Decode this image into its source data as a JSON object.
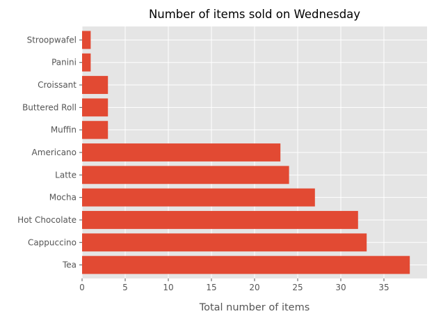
{
  "chart_data": {
    "type": "bar",
    "orientation": "horizontal",
    "title": "Number of items sold on Wednesday",
    "xlabel": "Total number of items",
    "ylabel": "",
    "xlim": [
      0,
      40
    ],
    "xticks": [
      0,
      5,
      10,
      15,
      20,
      25,
      30,
      35
    ],
    "categories": [
      "Tea",
      "Cappuccino",
      "Hot Chocolate",
      "Mocha",
      "Latte",
      "Americano",
      "Muffin",
      "Buttered Roll",
      "Croissant",
      "Panini",
      "Stroopwafel"
    ],
    "values": [
      38,
      33,
      32,
      27,
      24,
      23,
      3,
      3,
      3,
      1,
      1
    ],
    "grid": true,
    "legend": "none"
  },
  "colors": {
    "bar": "#E24A33",
    "background": "#E5E5E5",
    "grid": "#FFFFFF",
    "tick_text": "#555555",
    "label_text": "#555555",
    "title_text": "#000000"
  }
}
